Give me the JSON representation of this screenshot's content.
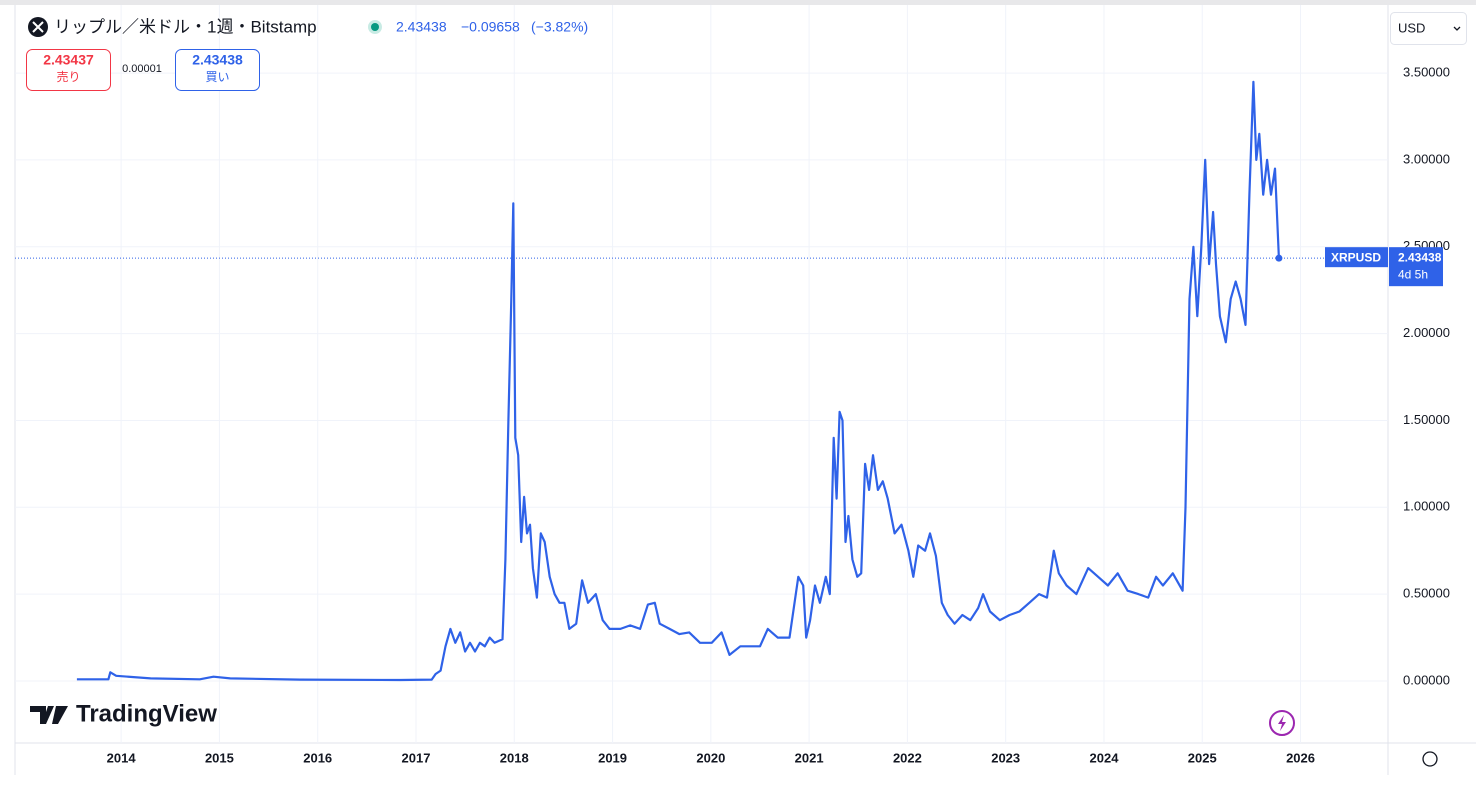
{
  "header": {
    "title": "リップル／米ドル・1週・Bitstamp",
    "price": "2.43438",
    "change": "−0.09658",
    "change_pct": "(−3.82%)",
    "sell_price": "2.43437",
    "sell_label": "売り",
    "spread": "0.00001",
    "buy_price": "2.43438",
    "buy_label": "買い",
    "currency": "USD",
    "countdown": "4d 5h",
    "brand": "TradingView"
  },
  "chart_data": {
    "type": "line",
    "x": [
      2013.55,
      2013.87,
      2013.89,
      2013.95,
      2014.3,
      2014.8,
      2014.94,
      2015.11,
      2015.82,
      2016.84,
      2017.16,
      2017.2,
      2017.25,
      2017.3,
      2017.35,
      2017.4,
      2017.45,
      2017.5,
      2017.55,
      2017.6,
      2017.65,
      2017.7,
      2017.75,
      2017.8,
      2017.88,
      2017.91,
      2017.94,
      2017.97,
      2017.99,
      2018.01,
      2018.04,
      2018.07,
      2018.1,
      2018.13,
      2018.16,
      2018.19,
      2018.23,
      2018.27,
      2018.31,
      2018.36,
      2018.41,
      2018.46,
      2018.51,
      2018.56,
      2018.63,
      2018.69,
      2018.75,
      2018.83,
      2018.9,
      2018.97,
      2019.08,
      2019.18,
      2019.28,
      2019.36,
      2019.43,
      2019.48,
      2019.58,
      2019.68,
      2019.78,
      2019.89,
      2020.01,
      2020.11,
      2020.19,
      2020.3,
      2020.4,
      2020.5,
      2020.58,
      2020.68,
      2020.8,
      2020.89,
      2020.94,
      2020.97,
      2021.01,
      2021.06,
      2021.11,
      2021.17,
      2021.21,
      2021.25,
      2021.28,
      2021.31,
      2021.34,
      2021.37,
      2021.4,
      2021.44,
      2021.49,
      2021.53,
      2021.57,
      2021.61,
      2021.65,
      2021.7,
      2021.75,
      2021.8,
      2021.87,
      2021.94,
      2022.01,
      2022.06,
      2022.11,
      2022.18,
      2022.23,
      2022.29,
      2022.35,
      2022.41,
      2022.48,
      2022.56,
      2022.64,
      2022.72,
      2022.77,
      2022.84,
      2022.94,
      2023.04,
      2023.14,
      2023.24,
      2023.34,
      2023.42,
      2023.49,
      2023.54,
      2023.62,
      2023.72,
      2023.84,
      2023.94,
      2024.04,
      2024.14,
      2024.24,
      2024.35,
      2024.45,
      2024.53,
      2024.6,
      2024.7,
      2024.8,
      2024.83,
      2024.87,
      2024.91,
      2024.95,
      2024.99,
      2025.03,
      2025.07,
      2025.11,
      2025.14,
      2025.18,
      2025.24,
      2025.29,
      2025.34,
      2025.39,
      2025.44,
      2025.48,
      2025.52,
      2025.55,
      2025.58,
      2025.62,
      2025.66,
      2025.7,
      2025.74,
      2025.78
    ],
    "series": [
      {
        "name": "XRPUSD",
        "color": "#2f62e8",
        "values": [
          0.01,
          0.01,
          0.05,
          0.03,
          0.015,
          0.01,
          0.025,
          0.015,
          0.008,
          0.006,
          0.008,
          0.04,
          0.06,
          0.2,
          0.3,
          0.22,
          0.28,
          0.17,
          0.22,
          0.17,
          0.22,
          0.2,
          0.25,
          0.22,
          0.24,
          0.7,
          1.5,
          2.2,
          2.75,
          1.4,
          1.3,
          0.8,
          1.06,
          0.85,
          0.9,
          0.65,
          0.48,
          0.85,
          0.8,
          0.6,
          0.5,
          0.45,
          0.45,
          0.3,
          0.33,
          0.58,
          0.45,
          0.5,
          0.35,
          0.3,
          0.3,
          0.32,
          0.3,
          0.44,
          0.45,
          0.33,
          0.3,
          0.27,
          0.28,
          0.22,
          0.22,
          0.28,
          0.15,
          0.2,
          0.2,
          0.2,
          0.3,
          0.25,
          0.25,
          0.6,
          0.55,
          0.25,
          0.35,
          0.55,
          0.45,
          0.6,
          0.5,
          1.4,
          1.05,
          1.55,
          1.5,
          0.8,
          0.95,
          0.7,
          0.6,
          0.62,
          1.25,
          1.1,
          1.3,
          1.1,
          1.15,
          1.05,
          0.85,
          0.9,
          0.75,
          0.6,
          0.78,
          0.75,
          0.85,
          0.72,
          0.45,
          0.38,
          0.33,
          0.38,
          0.35,
          0.42,
          0.5,
          0.4,
          0.35,
          0.38,
          0.4,
          0.45,
          0.5,
          0.48,
          0.75,
          0.62,
          0.55,
          0.5,
          0.65,
          0.6,
          0.55,
          0.62,
          0.52,
          0.5,
          0.48,
          0.6,
          0.55,
          0.62,
          0.52,
          1.0,
          2.2,
          2.5,
          2.1,
          2.5,
          3.0,
          2.4,
          2.7,
          2.4,
          2.1,
          1.95,
          2.2,
          2.3,
          2.2,
          2.05,
          2.8,
          3.45,
          3.0,
          3.15,
          2.8,
          3.0,
          2.8,
          2.95,
          2.43438
        ]
      }
    ],
    "xlim": [
      2012.92,
      2026.89
    ],
    "xticks": [
      2014,
      2015,
      2016,
      2017,
      2018,
      2019,
      2020,
      2021,
      2022,
      2023,
      2024,
      2025,
      2026
    ],
    "ylim": [
      -0.357,
      3.892
    ],
    "yticks": [
      {
        "value": 0,
        "label": "0.00000"
      },
      {
        "value": 0.5,
        "label": "0.50000"
      },
      {
        "value": 1,
        "label": "1.00000"
      },
      {
        "value": 1.5,
        "label": "1.50000"
      },
      {
        "value": 2,
        "label": "2.00000"
      },
      {
        "value": 2.5,
        "label": "2.50000"
      },
      {
        "value": 3,
        "label": "3.00000"
      },
      {
        "value": 3.5,
        "label": "3.50000"
      }
    ],
    "grid": true
  }
}
